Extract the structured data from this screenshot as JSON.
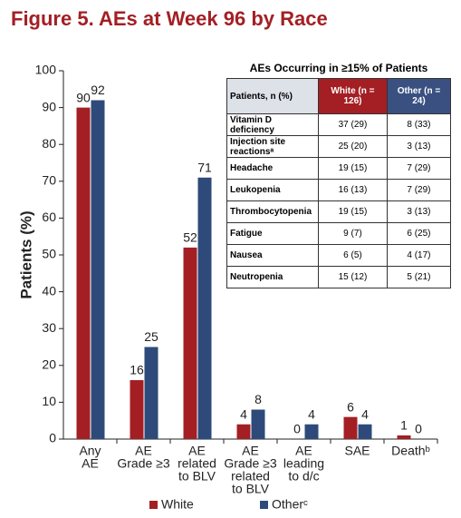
{
  "chart_data": {
    "type": "bar",
    "title": "Figure 5. AEs at Week 96 by Race",
    "y_label": "Patients (%)",
    "categories": [
      [
        "Any",
        "AE"
      ],
      [
        "AE",
        "Grade ≥3"
      ],
      [
        "AE",
        "related",
        "to BLV"
      ],
      [
        "AE",
        "Grade ≥3",
        "related",
        "to BLV"
      ],
      [
        "AE",
        "leading",
        "to d/c"
      ],
      [
        "SAE"
      ],
      [
        "Deathᵇ"
      ]
    ],
    "series": [
      {
        "name": "White",
        "color": "#a31f24",
        "values": [
          90,
          16,
          52,
          4,
          0,
          6,
          1
        ]
      },
      {
        "name": "Otherᶜ",
        "color": "#2d4a7a",
        "values": [
          92,
          25,
          71,
          8,
          4,
          4,
          0
        ]
      }
    ],
    "ylim": [
      0,
      100
    ],
    "yticks": [
      0,
      10,
      20,
      30,
      40,
      50,
      60,
      70,
      80,
      90,
      100
    ]
  },
  "table": {
    "title": "AEs Occurring in ≥15% of Patients",
    "header": [
      "Patients, n (%)",
      "White (n = 126)",
      "Other (n = 24)"
    ],
    "rows": [
      [
        "Vitamin D deficiency",
        "37 (29)",
        "8 (33)"
      ],
      [
        "Injection site reactionsᵃ",
        "25 (20)",
        "3 (13)"
      ],
      [
        "Headache",
        "19 (15)",
        "7 (29)"
      ],
      [
        "Leukopenia",
        "16 (13)",
        "7 (29)"
      ],
      [
        "Thrombocytopenia",
        "19 (15)",
        "3 (13)"
      ],
      [
        "Fatigue",
        "9 (7)",
        "6 (25)"
      ],
      [
        "Nausea",
        "6 (5)",
        "4 (17)"
      ],
      [
        "Neutropenia",
        "15 (12)",
        "5 (21)"
      ]
    ]
  }
}
